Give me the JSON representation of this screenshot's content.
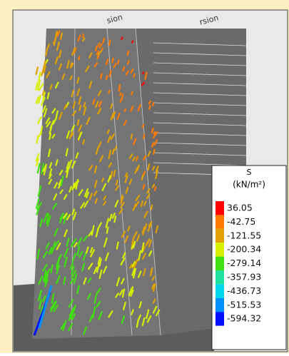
{
  "view_labels": [
    "sion",
    "rsion"
  ],
  "legend": {
    "title": "S",
    "unit": "(kN/m²)",
    "levels": [
      {
        "value": 36.05,
        "color": "#ff0000"
      },
      {
        "value": -42.75,
        "color": "#ff7a00"
      },
      {
        "value": -121.55,
        "color": "#e0a000"
      },
      {
        "value": -200.34,
        "color": "#d8f000"
      },
      {
        "value": -279.14,
        "color": "#40e010"
      },
      {
        "value": -357.93,
        "color": "#20e0a0"
      },
      {
        "value": -436.73,
        "color": "#00d8e8"
      },
      {
        "value": -515.53,
        "color": "#0090ff"
      },
      {
        "value": -594.32,
        "color": "#0010ff"
      }
    ]
  }
}
